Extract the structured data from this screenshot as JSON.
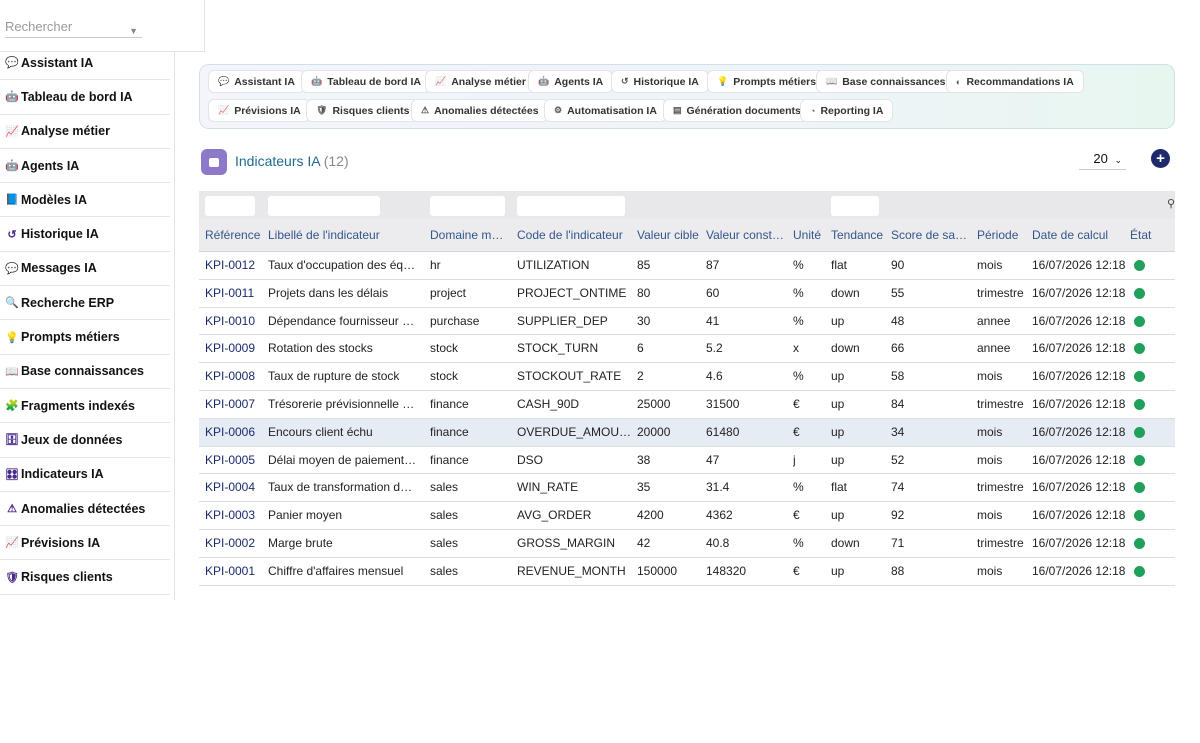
{
  "search": {
    "placeholder": "Rechercher"
  },
  "sidebar": {
    "items": [
      {
        "label": "Assistant IA",
        "icon": "chat-icon"
      },
      {
        "label": "Tableau de bord IA",
        "icon": "robot-icon"
      },
      {
        "label": "Analyse métier",
        "icon": "chart-line-icon"
      },
      {
        "label": "Agents IA",
        "icon": "robot-icon"
      },
      {
        "label": "Modèles IA",
        "icon": "book-icon"
      },
      {
        "label": "Historique IA",
        "icon": "history-icon"
      },
      {
        "label": "Messages IA",
        "icon": "message-icon"
      },
      {
        "label": "Recherche ERP",
        "icon": "search-icon"
      },
      {
        "label": "Prompts métiers",
        "icon": "lightbulb-icon"
      },
      {
        "label": "Base connaissances",
        "icon": "book-open-icon"
      },
      {
        "label": "Fragments indexés",
        "icon": "puzzle-icon"
      },
      {
        "label": "Jeux de données",
        "icon": "database-icon"
      },
      {
        "label": "Indicateurs IA",
        "icon": "gauge-icon"
      },
      {
        "label": "Anomalies détectées",
        "icon": "warning-icon"
      },
      {
        "label": "Prévisions IA",
        "icon": "chart-line-icon"
      },
      {
        "label": "Risques clients",
        "icon": "shield-icon"
      }
    ]
  },
  "tabs": [
    {
      "label": "Assistant IA",
      "icon": "chat-icon"
    },
    {
      "label": "Tableau de bord IA",
      "icon": "robot-icon"
    },
    {
      "label": "Analyse métier",
      "icon": "chart-line-icon"
    },
    {
      "label": "Agents IA",
      "icon": "robot-icon"
    },
    {
      "label": "Historique IA",
      "icon": "history-icon"
    },
    {
      "label": "Prompts métiers",
      "icon": "lightbulb-icon"
    },
    {
      "label": "Base connaissances",
      "icon": "book-open-icon"
    },
    {
      "label": "Recommandations IA",
      "icon": "brain-icon"
    },
    {
      "label": "Prévisions IA",
      "icon": "chart-line-icon"
    },
    {
      "label": "Risques clients",
      "icon": "shield-icon"
    },
    {
      "label": "Anomalies détectées",
      "icon": "warning-icon"
    },
    {
      "label": "Automatisation IA",
      "icon": "gears-icon"
    },
    {
      "label": "Génération documents",
      "icon": "file-icon"
    },
    {
      "label": "Reporting IA",
      "icon": "pie-icon"
    }
  ],
  "page": {
    "title": "Indicateurs IA",
    "count": "(12)",
    "page_size": "20"
  },
  "table": {
    "columns": [
      "Référence",
      "Libellé de l'indicateur",
      "Domaine mé…",
      "Code de l'indicateur",
      "Valeur cible",
      "Valeur const…",
      "Unité",
      "Tendance",
      "Score de santé",
      "Période",
      "Date de calcul",
      "État"
    ],
    "rows": [
      [
        "KPI-0012",
        "Taux d'occupation des équi…",
        "hr",
        "UTILIZATION",
        "85",
        "87",
        "%",
        "flat",
        "90",
        "mois",
        "16/07/2026 12:18"
      ],
      [
        "KPI-0011",
        "Projets dans les délais",
        "project",
        "PROJECT_ONTIME",
        "80",
        "60",
        "%",
        "down",
        "55",
        "trimestre",
        "16/07/2026 12:18"
      ],
      [
        "KPI-0010",
        "Dépendance fournisseur pri…",
        "purchase",
        "SUPPLIER_DEP",
        "30",
        "41",
        "%",
        "up",
        "48",
        "annee",
        "16/07/2026 12:18"
      ],
      [
        "KPI-0009",
        "Rotation des stocks",
        "stock",
        "STOCK_TURN",
        "6",
        "5.2",
        "x",
        "down",
        "66",
        "annee",
        "16/07/2026 12:18"
      ],
      [
        "KPI-0008",
        "Taux de rupture de stock",
        "stock",
        "STOCKOUT_RATE",
        "2",
        "4.6",
        "%",
        "up",
        "58",
        "mois",
        "16/07/2026 12:18"
      ],
      [
        "KPI-0007",
        "Trésorerie prévisionnelle 90j",
        "finance",
        "CASH_90D",
        "25000",
        "31500",
        "€",
        "up",
        "84",
        "trimestre",
        "16/07/2026 12:18"
      ],
      [
        "KPI-0006",
        "Encours client échu",
        "finance",
        "OVERDUE_AMOUNT",
        "20000",
        "61480",
        "€",
        "up",
        "34",
        "mois",
        "16/07/2026 12:18"
      ],
      [
        "KPI-0005",
        "Délai moyen de paiement (…",
        "finance",
        "DSO",
        "38",
        "47",
        "j",
        "up",
        "52",
        "mois",
        "16/07/2026 12:18"
      ],
      [
        "KPI-0004",
        "Taux de transformation devis",
        "sales",
        "WIN_RATE",
        "35",
        "31.4",
        "%",
        "flat",
        "74",
        "trimestre",
        "16/07/2026 12:18"
      ],
      [
        "KPI-0003",
        "Panier moyen",
        "sales",
        "AVG_ORDER",
        "4200",
        "4362",
        "€",
        "up",
        "92",
        "mois",
        "16/07/2026 12:18"
      ],
      [
        "KPI-0002",
        "Marge brute",
        "sales",
        "GROSS_MARGIN",
        "42",
        "40.8",
        "%",
        "down",
        "71",
        "trimestre",
        "16/07/2026 12:18"
      ],
      [
        "KPI-0001",
        "Chiffre d'affaires mensuel",
        "sales",
        "REVENUE_MONTH",
        "150000",
        "148320",
        "€",
        "up",
        "88",
        "mois",
        "16/07/2026 12:18"
      ]
    ],
    "status_color": "#20a05a",
    "highlight_row": 6
  },
  "colors": {
    "accent": "#1d2a6b",
    "link": "#1a2a6e",
    "header_text": "#33558a",
    "title": "#1e6b8a"
  }
}
